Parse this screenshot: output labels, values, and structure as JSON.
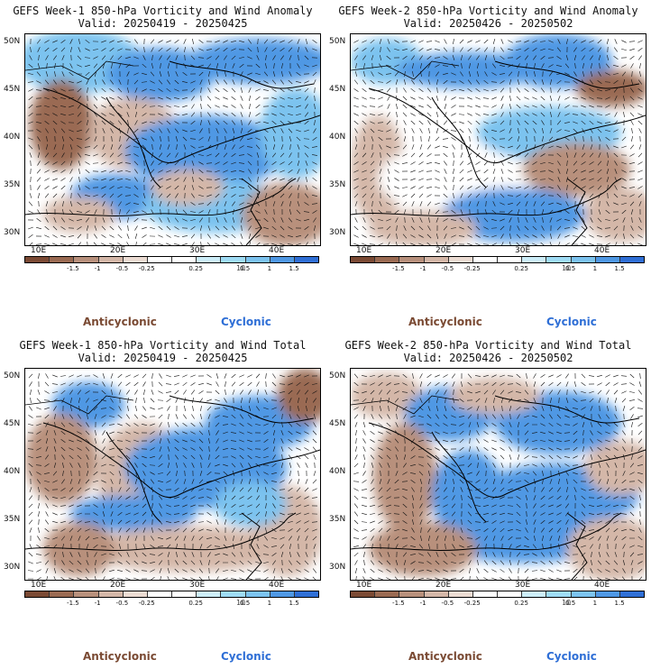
{
  "colorbar": {
    "ticks": [
      "-1.5",
      "-1",
      "-0.5",
      "-0.25",
      "0.25",
      "0.5",
      "1",
      "1.5"
    ],
    "unit_text": "10",
    "colors": [
      "#7b4a34",
      "#9a6a52",
      "#b8907c",
      "#d4b7a8",
      "#ecdcd3",
      "#ffffff",
      "#ffffff",
      "#cdeef9",
      "#9fdcf5",
      "#7cc3ef",
      "#4f98e4",
      "#2f6fd6"
    ]
  },
  "lat_labels": [
    "50N",
    "45N",
    "40N",
    "35N",
    "30N"
  ],
  "lon_labels": [
    "10E",
    "20E",
    "30E",
    "40E"
  ],
  "legend": {
    "anticyclonic": "Anticyclonic",
    "cyclonic": "Cyclonic"
  },
  "panels": [
    {
      "title": "GEFS Week-1 850-hPa Vorticity and Wind Anomaly",
      "valid": "Valid: 20250419 - 20250425"
    },
    {
      "title": "GEFS Week-2 850-hPa Vorticity and Wind Anomaly",
      "valid": "Valid: 20250426 - 20250502"
    },
    {
      "title": "GEFS Week-1 850-hPa Vorticity and Wind Total",
      "valid": "Valid: 20250419 - 20250425"
    },
    {
      "title": "GEFS Week-2 850-hPa Vorticity and Wind Total",
      "valid": "Valid: 20250426 - 20250502"
    }
  ]
}
